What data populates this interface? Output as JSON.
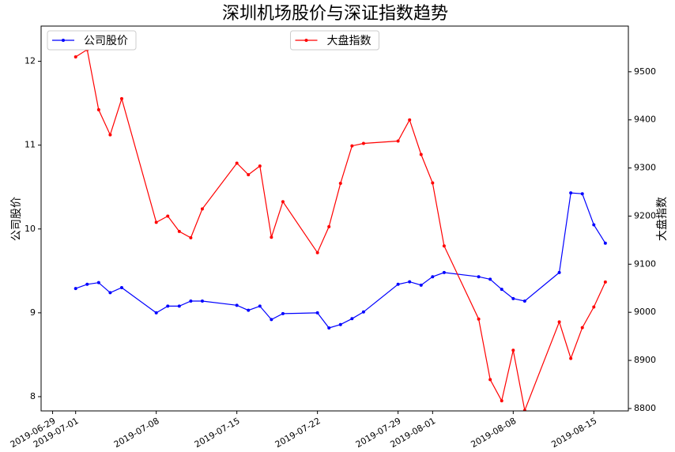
{
  "chart_data": {
    "type": "line",
    "title": "深圳机场股价与深证指数趋势",
    "ylabel": "公司股价",
    "y2label": "大盘指数",
    "x": [
      "2019-07-01",
      "2019-07-02",
      "2019-07-03",
      "2019-07-04",
      "2019-07-05",
      "2019-07-08",
      "2019-07-09",
      "2019-07-10",
      "2019-07-11",
      "2019-07-12",
      "2019-07-15",
      "2019-07-16",
      "2019-07-17",
      "2019-07-18",
      "2019-07-19",
      "2019-07-22",
      "2019-07-23",
      "2019-07-24",
      "2019-07-25",
      "2019-07-26",
      "2019-07-29",
      "2019-07-30",
      "2019-07-31",
      "2019-08-01",
      "2019-08-02",
      "2019-08-05",
      "2019-08-06",
      "2019-08-07",
      "2019-08-08",
      "2019-08-09",
      "2019-08-12",
      "2019-08-13",
      "2019-08-14",
      "2019-08-15",
      "2019-08-16"
    ],
    "xlim": [
      "2019-06-28",
      "2019-08-18"
    ],
    "xticks": [
      "2019-06-29",
      "2019-07-01",
      "2019-07-08",
      "2019-07-15",
      "2019-07-22",
      "2019-07-29",
      "2019-08-01",
      "2019-08-08",
      "2019-08-15"
    ],
    "ylim": [
      7.83,
      12.42
    ],
    "yticks": [
      8,
      9,
      10,
      11,
      12
    ],
    "y2lim": [
      8795,
      9595
    ],
    "y2ticks": [
      8800,
      8900,
      9000,
      9100,
      9200,
      9300,
      9400,
      9500
    ],
    "series": [
      {
        "name": "公司股价",
        "color": "#0000ff",
        "axis": "y",
        "legend": "upper left",
        "values": [
          9.29,
          9.34,
          9.36,
          9.24,
          9.3,
          9.0,
          9.08,
          9.08,
          9.14,
          9.14,
          9.09,
          9.03,
          9.08,
          8.92,
          8.99,
          9.0,
          8.82,
          8.86,
          8.93,
          9.01,
          9.34,
          9.37,
          9.33,
          9.43,
          9.48,
          9.43,
          9.4,
          9.28,
          9.17,
          9.14,
          9.48,
          10.43,
          10.42,
          10.05,
          9.83
        ]
      },
      {
        "name": "大盘指数",
        "color": "#ff0000",
        "axis": "y2",
        "legend": "upper center",
        "values": [
          9531,
          9546,
          9421,
          9369,
          9444,
          9187,
          9200,
          9168,
          9155,
          9215,
          9310,
          9286,
          9304,
          9156,
          9230,
          9124,
          9178,
          9268,
          9346,
          9351,
          9356,
          9400,
          9328,
          9269,
          9138,
          8986,
          8860,
          8816,
          8921,
          8796,
          8980,
          8904,
          8968,
          9011,
          9063
        ]
      }
    ]
  }
}
